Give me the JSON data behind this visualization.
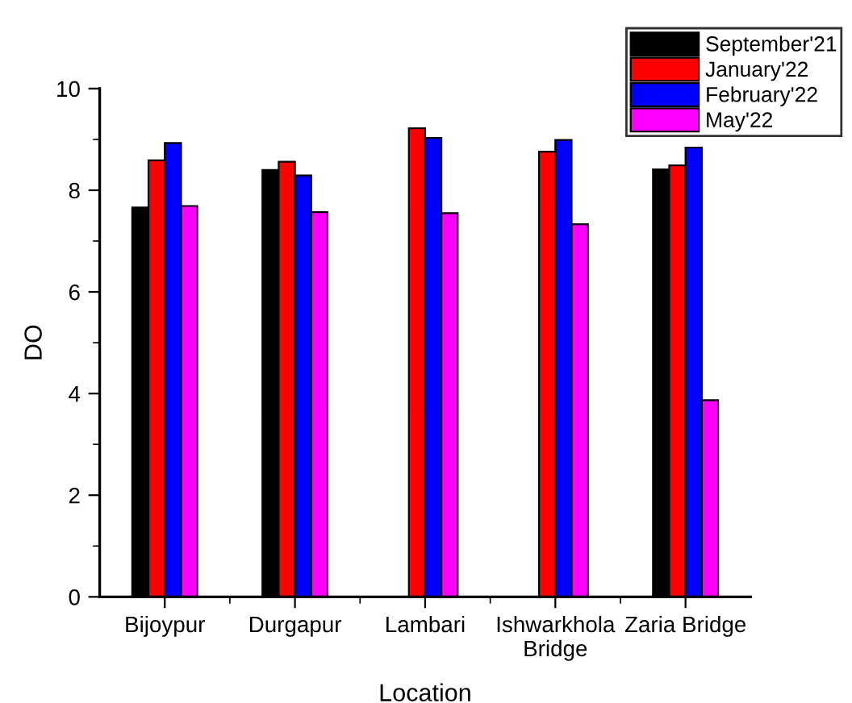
{
  "chart_data": {
    "type": "bar",
    "xlabel": "Location",
    "ylabel": "DO",
    "categories": [
      "Bijoypur",
      "Durgapur",
      "Lambari",
      "Ishwarkhola\nBridge",
      "Zaria Bridge"
    ],
    "series": [
      {
        "name": "September'21",
        "color": "#000000",
        "values": [
          7.66,
          8.4,
          null,
          null,
          8.41
        ]
      },
      {
        "name": "January'22",
        "color": "#ff0000",
        "values": [
          8.59,
          8.56,
          9.22,
          8.76,
          8.49
        ]
      },
      {
        "name": "February'22",
        "color": "#0000ff",
        "values": [
          8.93,
          8.29,
          9.03,
          8.99,
          8.84
        ]
      },
      {
        "name": "May'22",
        "color": "#ff00ff",
        "values": [
          7.69,
          7.57,
          7.55,
          7.33,
          3.87
        ]
      }
    ],
    "ylim": [
      0,
      10
    ],
    "yticks": [
      0,
      2,
      4,
      6,
      8,
      10
    ],
    "legend": "top right",
    "grid": false
  }
}
